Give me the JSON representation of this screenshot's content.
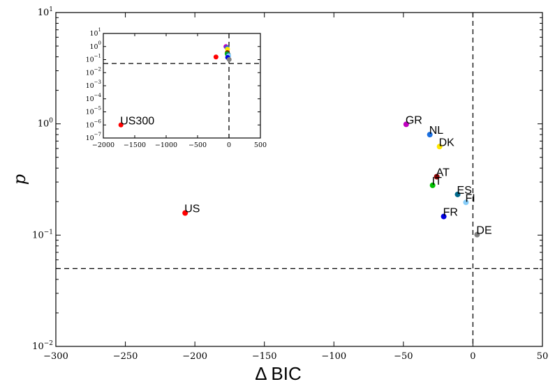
{
  "chart_data": [
    {
      "type": "scatter",
      "id": "main",
      "xlabel": "Δ BIC",
      "ylabel": "p",
      "xlim": [
        -300,
        50
      ],
      "ylim": [
        0.01,
        10
      ],
      "yscale": "log",
      "x_ticks": [
        -300,
        -250,
        -200,
        -150,
        -100,
        -50,
        0,
        50
      ],
      "x_tick_labels": [
        "−300",
        "−250",
        "−200",
        "−150",
        "−100",
        "−50",
        "0",
        "50"
      ],
      "y_ticks": [
        {
          "value": 0.01,
          "base": "10",
          "exp": "−2"
        },
        {
          "value": 0.1,
          "base": "10",
          "exp": "−1"
        },
        {
          "value": 1,
          "base": "10",
          "exp": "0"
        },
        {
          "value": 10,
          "base": "10",
          "exp": "1"
        }
      ],
      "reference_lines": {
        "x": 0,
        "y": 0.05
      },
      "grid": false,
      "points": [
        {
          "label": "US",
          "x": -207,
          "y": 0.158,
          "color": "#ff0000"
        },
        {
          "label": "GR",
          "x": -48,
          "y": 0.99,
          "color": "#bf00bf"
        },
        {
          "label": "NL",
          "x": -31,
          "y": 0.8,
          "color": "#1a6fe0"
        },
        {
          "label": "DK",
          "x": -24,
          "y": 0.625,
          "color": "#ffe600"
        },
        {
          "label": "AT",
          "x": -26,
          "y": 0.335,
          "color": "#8b0000"
        },
        {
          "label": "IT",
          "x": -29,
          "y": 0.28,
          "color": "#00c000"
        },
        {
          "label": "ES",
          "x": -11,
          "y": 0.232,
          "color": "#00688b"
        },
        {
          "label": "FI",
          "x": -5,
          "y": 0.197,
          "color": "#87cefa"
        },
        {
          "label": "FR",
          "x": -21,
          "y": 0.147,
          "color": "#0000e0"
        },
        {
          "label": "DE",
          "x": 3,
          "y": 0.101,
          "color": "#808080"
        }
      ]
    },
    {
      "type": "scatter",
      "id": "inset",
      "xlim": [
        -2000,
        500
      ],
      "ylim": [
        1e-07,
        10
      ],
      "yscale": "log",
      "x_ticks": [
        -2000,
        -1500,
        -1000,
        -500,
        0,
        500
      ],
      "x_tick_labels": [
        "−2000",
        "−1500",
        "−1000",
        "−500",
        "0",
        "500"
      ],
      "y_ticks": [
        {
          "value": 1e-07,
          "base": "10",
          "exp": "−7"
        },
        {
          "value": 1e-06,
          "base": "10",
          "exp": "−6"
        },
        {
          "value": 1e-05,
          "base": "10",
          "exp": "−5"
        },
        {
          "value": 0.0001,
          "base": "10",
          "exp": "−4"
        },
        {
          "value": 0.001,
          "base": "10",
          "exp": "−3"
        },
        {
          "value": 0.01,
          "base": "10",
          "exp": "−2"
        },
        {
          "value": 0.1,
          "base": "10",
          "exp": "−1"
        },
        {
          "value": 1,
          "base": "10",
          "exp": "0"
        },
        {
          "value": 10,
          "base": "10",
          "exp": "1"
        }
      ],
      "reference_lines": {
        "x": 0,
        "y": 0.05
      },
      "grid": false,
      "points": [
        {
          "label": "US300",
          "x": -1720,
          "y": 1e-06,
          "color": "#ff0000"
        },
        {
          "label": "",
          "x": -207,
          "y": 0.158,
          "color": "#ff0000"
        },
        {
          "label": "",
          "x": -48,
          "y": 0.99,
          "color": "#bf00bf"
        },
        {
          "label": "",
          "x": -31,
          "y": 0.8,
          "color": "#1a6fe0"
        },
        {
          "label": "",
          "x": -24,
          "y": 0.625,
          "color": "#ffe600"
        },
        {
          "label": "",
          "x": -26,
          "y": 0.335,
          "color": "#8b0000"
        },
        {
          "label": "",
          "x": -29,
          "y": 0.28,
          "color": "#00c000"
        },
        {
          "label": "",
          "x": -11,
          "y": 0.232,
          "color": "#00688b"
        },
        {
          "label": "",
          "x": -5,
          "y": 0.197,
          "color": "#87cefa"
        },
        {
          "label": "",
          "x": -21,
          "y": 0.147,
          "color": "#0000e0"
        },
        {
          "label": "",
          "x": 3,
          "y": 0.101,
          "color": "#808080"
        }
      ]
    }
  ]
}
